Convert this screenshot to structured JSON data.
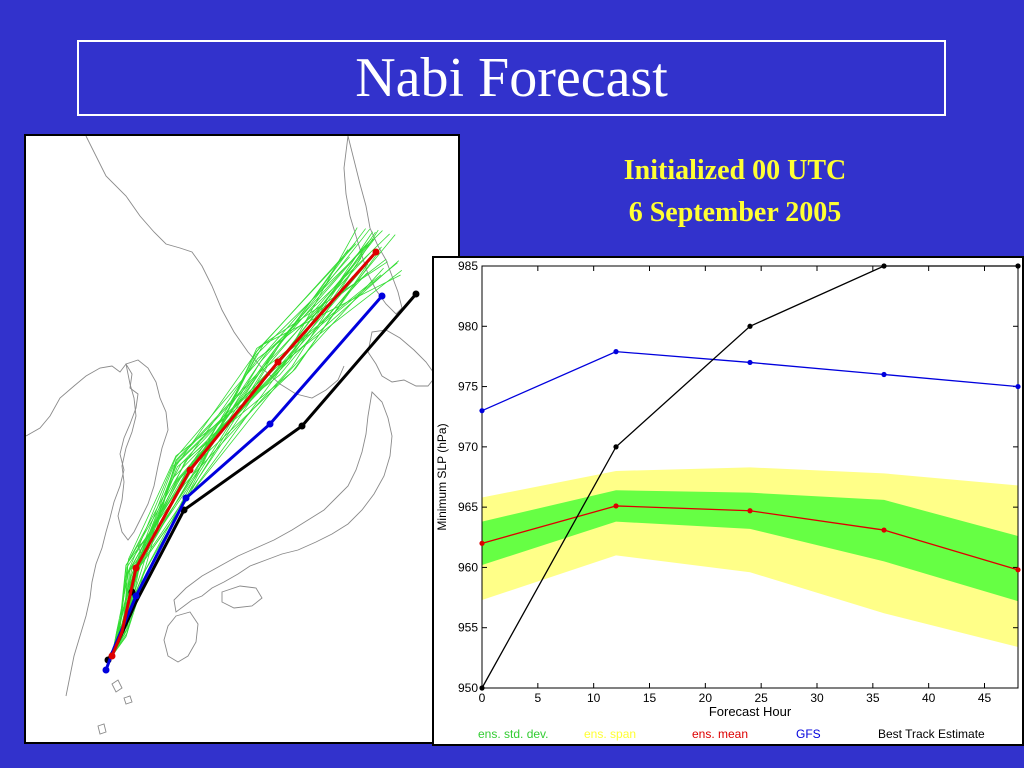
{
  "slide": {
    "title": "Nabi Forecast",
    "init_line1": "Initialized 00 UTC",
    "init_line2": "6 September 2005"
  },
  "colors": {
    "background": "#3232cc",
    "title_text": "#ffffff",
    "subtitle_text": "#ffff33",
    "std_dev_fill": "#66ff44",
    "span_fill": "#ffff88",
    "ens_mean": "#dd0000",
    "gfs": "#0000dd",
    "best_track": "#000000",
    "ensemble_members": "#33dd33",
    "coastline": "#888888"
  },
  "chart_data": [
    {
      "type": "line",
      "x": [
        0,
        12,
        24,
        36,
        48
      ],
      "xlabel": "Forecast Hour",
      "ylabel": "Minimum SLP (hPa)",
      "xlim": [
        0,
        48
      ],
      "ylim": [
        950,
        985
      ],
      "xticks": [
        0,
        5,
        10,
        15,
        20,
        25,
        30,
        35,
        40,
        45
      ],
      "yticks": [
        950,
        955,
        960,
        965,
        970,
        975,
        980,
        985
      ],
      "grid": false,
      "legend_position": "bottom",
      "bands": [
        {
          "name": "ens. span",
          "color": "#ffff88",
          "lower": [
            957.3,
            961.0,
            959.6,
            956.2,
            953.4
          ],
          "upper": [
            965.8,
            968.0,
            968.3,
            967.8,
            966.8
          ]
        },
        {
          "name": "ens. std. dev.",
          "color": "#66ff44",
          "lower": [
            960.2,
            963.8,
            963.2,
            960.5,
            957.2
          ],
          "upper": [
            963.8,
            966.4,
            966.2,
            965.6,
            962.6
          ]
        }
      ],
      "series": [
        {
          "name": "ens. mean",
          "color": "#dd0000",
          "values": [
            962.0,
            965.1,
            964.7,
            963.1,
            959.8
          ]
        },
        {
          "name": "GFS",
          "color": "#0000dd",
          "values": [
            973.0,
            977.9,
            977.0,
            976.0,
            975.0
          ]
        },
        {
          "name": "Best Track Estimate",
          "color": "#000000",
          "values": [
            950.0,
            970.0,
            980.0,
            985.0,
            985.0
          ]
        }
      ],
      "legend_labels": [
        {
          "label": "ens. std. dev.",
          "color": "#33cc33"
        },
        {
          "label": "ens. span",
          "color": "#ffff33"
        },
        {
          "label": "ens. mean",
          "color": "#dd0000"
        },
        {
          "label": "GFS",
          "color": "#0000dd"
        },
        {
          "label": "Best Track Estimate",
          "color": "#000000"
        }
      ]
    }
  ]
}
